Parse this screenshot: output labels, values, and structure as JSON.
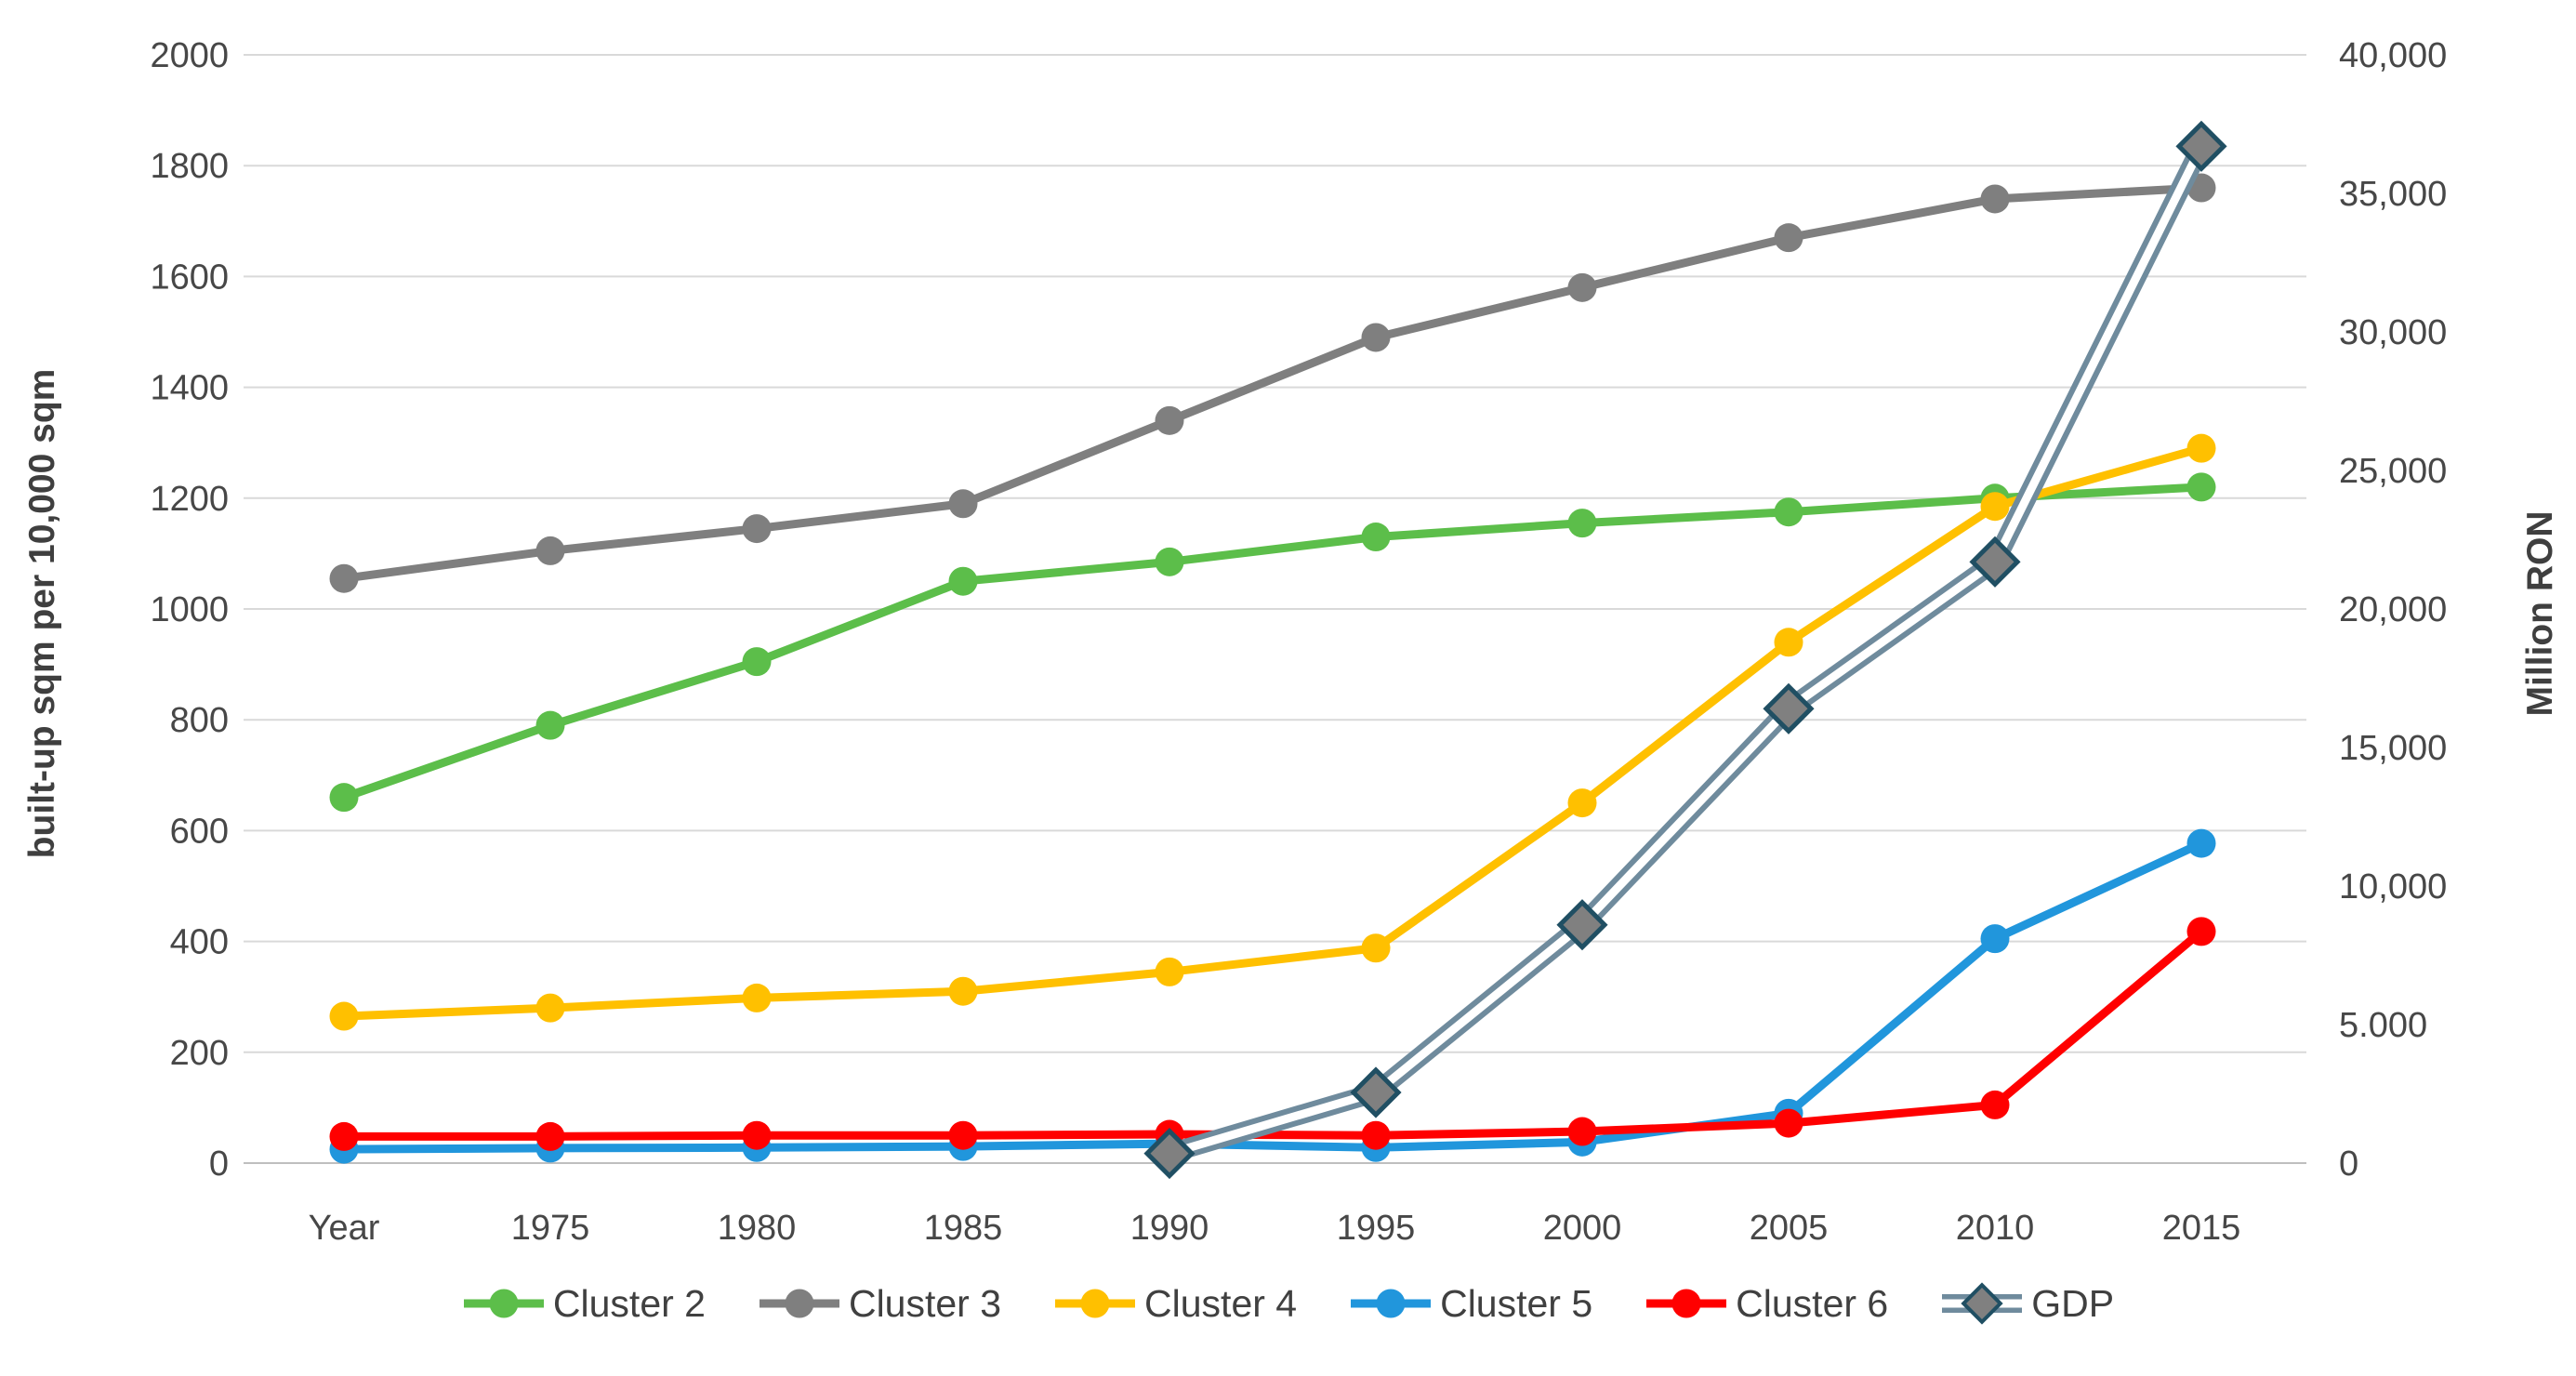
{
  "chart_data": {
    "type": "line",
    "title": "",
    "categories": [
      "Year",
      "1975",
      "1980",
      "1985",
      "1990",
      "1995",
      "2000",
      "2005",
      "2010",
      "2015"
    ],
    "left_axis": {
      "label": "built-up sqm per 10,000 sqm",
      "range": [
        0,
        2000
      ],
      "tick_step": 200,
      "tick_labels": [
        "0",
        "200",
        "400",
        "600",
        "800",
        "1000",
        "1200",
        "1400",
        "1600",
        "1800",
        "2000"
      ]
    },
    "right_axis": {
      "label": "Million RON",
      "range": [
        0,
        40000
      ],
      "tick_step": 5000,
      "tick_labels": [
        "0",
        "5.000",
        "10,000",
        "15,000",
        "20,000",
        "25,000",
        "30,000",
        "35,000",
        "40,000"
      ]
    },
    "grid": "horizontal",
    "legend_position": "bottom",
    "series": [
      {
        "name": "Cluster 2",
        "axis": "left",
        "marker": "circle",
        "line_style": "solid",
        "color": "#5CBE4A",
        "values": [
          660,
          790,
          905,
          1050,
          1085,
          1130,
          1155,
          1175,
          1200,
          1220
        ]
      },
      {
        "name": "Cluster 3",
        "axis": "left",
        "marker": "circle",
        "line_style": "solid",
        "color": "#7F7F7F",
        "values": [
          1055,
          1105,
          1145,
          1190,
          1340,
          1490,
          1580,
          1670,
          1740,
          1760
        ]
      },
      {
        "name": "Cluster 4",
        "axis": "left",
        "marker": "circle",
        "line_style": "solid",
        "color": "#FFC000",
        "values": [
          265,
          280,
          298,
          310,
          345,
          388,
          650,
          940,
          1185,
          1290
        ]
      },
      {
        "name": "Cluster 5",
        "axis": "left",
        "marker": "circle",
        "line_style": "solid",
        "color": "#2196DC",
        "values": [
          25,
          27,
          28,
          30,
          35,
          28,
          38,
          90,
          405,
          577
        ]
      },
      {
        "name": "Cluster 6",
        "axis": "left",
        "marker": "circle",
        "line_style": "solid",
        "color": "#FF0000",
        "values": [
          48,
          48,
          50,
          50,
          52,
          50,
          57,
          72,
          105,
          418
        ]
      },
      {
        "name": "GDP",
        "axis": "right",
        "marker": "diamond",
        "line_style": "double",
        "color": "#6F8B9D",
        "marker_fill": "#808080",
        "marker_stroke": "#204F63",
        "values": [
          null,
          null,
          null,
          null,
          350,
          2550,
          8600,
          16400,
          21700,
          36700
        ]
      }
    ]
  }
}
